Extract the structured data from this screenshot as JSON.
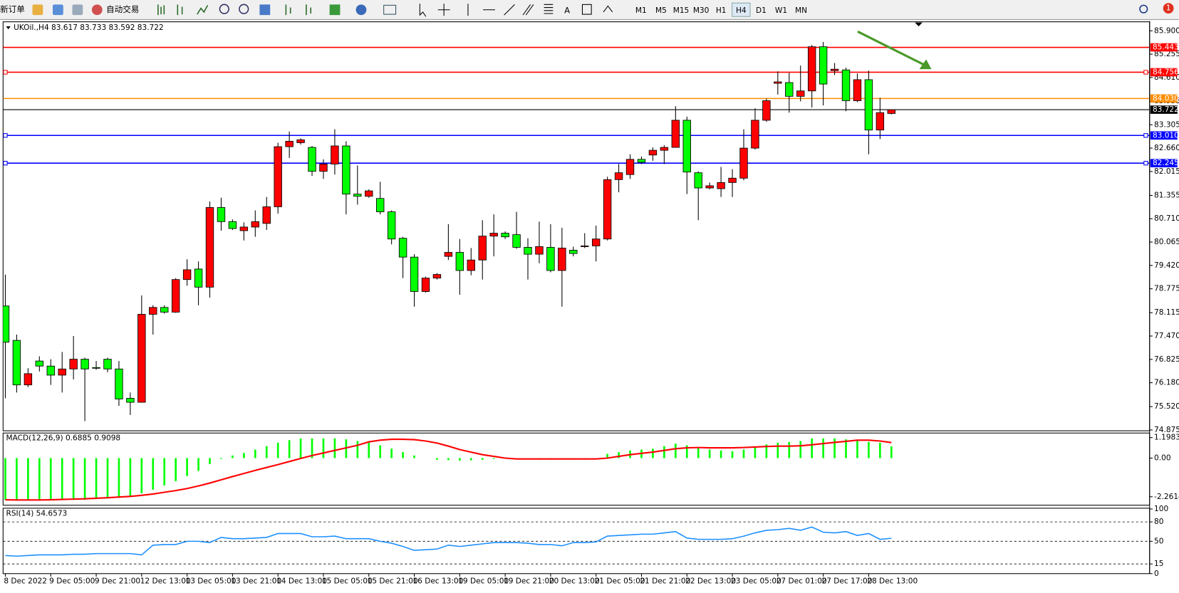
{
  "toolbar": {
    "new_order": "新订单",
    "auto_trading": "自动交易",
    "text_tool": "A",
    "notifications": "1",
    "timeframes": [
      "M1",
      "M5",
      "M15",
      "M30",
      "H1",
      "H4",
      "D1",
      "W1",
      "MN"
    ],
    "active_timeframe": "H4"
  },
  "chart_data": [
    {
      "type": "candlestick",
      "title": "UKOil.,H4  83.617 83.733 83.592 83.722",
      "up_color": "#ff0000",
      "down_color": "#00ff00",
      "categories": [
        "8 Dec 2022",
        null,
        null,
        null,
        "9 Dec 05:00",
        null,
        null,
        null,
        "9 Dec 21:00",
        null,
        null,
        null,
        "12 Dec 13:00",
        null,
        null,
        null,
        "13 Dec 05:00",
        null,
        null,
        null,
        "13 Dec 21:00",
        null,
        null,
        null,
        "14 Dec 13:00",
        null,
        null,
        null,
        "15 Dec 05:00",
        null,
        null,
        null,
        "15 Dec 21:00",
        null,
        null,
        null,
        "16 Dec 13:00",
        null,
        null,
        null,
        "19 Dec 05:00",
        null,
        null,
        null,
        "19 Dec 21:00",
        null,
        null,
        null,
        "20 Dec 13:00",
        null,
        null,
        null,
        "21 Dec 05:00",
        null,
        null,
        null,
        "21 Dec 21:00",
        null,
        null,
        null,
        "22 Dec 13:00",
        null,
        null,
        null,
        "23 Dec 05:00",
        null,
        null,
        null,
        "27 Dec 01:00",
        null,
        null,
        null,
        "27 Dec 17:00",
        null,
        null,
        null,
        "28 Dec 13:00",
        null,
        null
      ],
      "open": [
        78.3,
        77.35,
        76.12,
        76.78,
        76.64,
        76.39,
        76.56,
        76.83,
        76.6,
        76.83,
        76.56,
        75.75,
        75.64,
        78.07,
        78.26,
        78.13,
        79.03,
        79.32,
        78.82,
        81.02,
        80.63,
        80.38,
        80.48,
        80.58,
        81.04,
        82.7,
        82.81,
        82.68,
        82.02,
        82.22,
        82.72,
        81.39,
        81.33,
        81.27,
        80.9,
        80.17,
        79.65,
        78.7,
        79.07,
        79.67,
        79.78,
        79.28,
        79.57,
        80.23,
        80.31,
        80.27,
        79.92,
        79.73,
        79.92,
        79.28,
        79.84,
        79.94,
        79.96,
        80.15,
        81.79,
        81.93,
        82.35,
        82.47,
        82.6,
        82.68,
        83.43,
        81.98,
        81.56,
        81.54,
        81.71,
        81.83,
        82.66,
        83.43,
        84.45,
        84.47,
        84.09,
        84.24,
        85.46,
        84.8,
        84.82,
        83.97,
        84.55,
        83.16,
        83.617
      ],
      "high": [
        79.17,
        77.51,
        76.58,
        76.91,
        76.83,
        77.03,
        77.47,
        76.87,
        76.78,
        76.87,
        76.78,
        75.91,
        78.59,
        78.32,
        78.32,
        79.07,
        79.59,
        79.53,
        81.19,
        81.29,
        80.69,
        80.61,
        80.94,
        81.31,
        82.81,
        83.12,
        82.93,
        82.72,
        82.35,
        83.18,
        82.85,
        82.18,
        81.52,
        81.73,
        80.94,
        80.21,
        79.73,
        79.11,
        79.21,
        80.56,
        80.15,
        79.9,
        80.67,
        80.83,
        80.36,
        80.9,
        80.17,
        80.63,
        80.56,
        80.46,
        79.94,
        80.31,
        80.52,
        81.87,
        82.22,
        82.49,
        82.43,
        82.68,
        82.74,
        83.82,
        83.53,
        82.02,
        81.71,
        82.14,
        82.08,
        83.18,
        83.76,
        84.03,
        84.78,
        84.74,
        84.94,
        85.51,
        85.59,
        85.01,
        84.88,
        84.72,
        84.8,
        84.05,
        83.733
      ],
      "low": [
        75.75,
        75.91,
        76.06,
        76.49,
        76.12,
        75.91,
        76.27,
        75.12,
        76.54,
        76.47,
        75.54,
        75.29,
        75.64,
        77.51,
        78.09,
        78.11,
        78.86,
        78.32,
        78.53,
        80.38,
        80.4,
        80.11,
        80.21,
        80.4,
        80.85,
        82.39,
        82.76,
        81.89,
        81.81,
        81.93,
        80.83,
        81.1,
        81.29,
        80.83,
        80.0,
        79.07,
        78.28,
        78.67,
        79.03,
        79.57,
        78.61,
        79.15,
        79.03,
        79.67,
        80.15,
        79.88,
        79.03,
        79.48,
        79.23,
        78.28,
        79.67,
        79.9,
        79.53,
        80.11,
        81.44,
        81.81,
        82.22,
        82.31,
        82.22,
        82.68,
        81.39,
        80.67,
        81.52,
        81.31,
        81.31,
        81.77,
        82.62,
        83.39,
        84.14,
        83.64,
        83.95,
        83.78,
        83.84,
        84.68,
        83.68,
        83.93,
        82.49,
        82.91,
        83.592
      ],
      "close": [
        77.3,
        76.12,
        76.43,
        76.64,
        76.39,
        76.56,
        76.83,
        76.56,
        76.58,
        76.56,
        75.73,
        75.64,
        78.07,
        78.26,
        78.13,
        79.03,
        79.3,
        78.82,
        81.02,
        80.63,
        80.44,
        80.48,
        80.63,
        81.04,
        82.7,
        82.85,
        82.89,
        82.02,
        82.22,
        82.72,
        81.39,
        81.33,
        81.48,
        80.9,
        80.15,
        79.65,
        78.7,
        79.07,
        79.17,
        79.78,
        79.28,
        79.57,
        80.23,
        80.31,
        80.21,
        79.92,
        79.73,
        79.94,
        79.28,
        79.9,
        79.75,
        79.96,
        80.15,
        81.79,
        81.98,
        82.35,
        82.27,
        82.6,
        82.68,
        83.43,
        82.0,
        81.56,
        81.62,
        81.71,
        81.83,
        82.66,
        83.43,
        83.97,
        84.49,
        84.09,
        84.24,
        85.46,
        84.43,
        84.84,
        83.97,
        84.55,
        83.16,
        83.64,
        83.722
      ],
      "ylim": [
        74.853,
        86.149
      ],
      "yticks": [
        {
          "value": 85.9,
          "label": "85.900"
        },
        85.255,
        {
          "value": 84.61,
          "label": "84.610"
        },
        83.955,
        83.305,
        {
          "value": 82.66,
          "label": "82.660"
        },
        82.015,
        81.355,
        {
          "value": 80.71,
          "label": "80.710"
        },
        80.065,
        {
          "value": 79.42,
          "label": "79.420"
        },
        78.775,
        78.115,
        {
          "value": 77.47,
          "label": "77.470"
        },
        76.825,
        {
          "value": 76.18,
          "label": "76.180"
        },
        {
          "value": 75.52,
          "label": "75.520"
        },
        74.875
      ],
      "levels": [
        {
          "value": 85.443,
          "color": "#ff0000"
        },
        {
          "value": 84.756,
          "color": "#ff0000",
          "selected": true
        },
        {
          "value": 84.03,
          "label": "84.030",
          "color": "#ff8c00"
        },
        {
          "value": 83.722,
          "color": "#000000"
        },
        {
          "value": 83.01,
          "label": "83.010",
          "color": "#0000ff",
          "selected": true
        },
        {
          "value": 82.245,
          "color": "#0000ff",
          "selected": true
        }
      ]
    },
    {
      "type": "macd",
      "title": "MACD(12,26,9) 0.6885 0.9098",
      "color": "#00ff00",
      "values": [
        -2.44,
        -2.44,
        -2.44,
        -2.44,
        -2.44,
        -2.44,
        -2.44,
        -2.44,
        -2.4,
        -2.36,
        -2.33,
        -2.25,
        -2.05,
        -1.85,
        -1.6,
        -1.35,
        -1.05,
        -0.75,
        -0.35,
        -0.05,
        0.15,
        0.3,
        0.5,
        0.7,
        0.9,
        1.05,
        1.15,
        1.15,
        1.15,
        1.15,
        1.1,
        1.0,
        0.9,
        0.75,
        0.55,
        0.35,
        0.15,
        0.0,
        -0.1,
        -0.12,
        -0.15,
        -0.13,
        -0.1,
        -0.05,
        -0.03,
        -0.02,
        -0.05,
        -0.05,
        -0.06,
        -0.05,
        -0.03,
        -0.02,
        0.0,
        0.25,
        0.35,
        0.45,
        0.5,
        0.55,
        0.7,
        0.85,
        0.75,
        0.6,
        0.5,
        0.45,
        0.4,
        0.5,
        0.65,
        0.8,
        0.9,
        0.95,
        1.0,
        1.15,
        1.15,
        1.15,
        1.1,
        1.05,
        0.95,
        0.9,
        0.6885
      ],
      "signal": {
        "color": "#ff0000",
        "values": [
          -2.44,
          -2.45,
          -2.45,
          -2.45,
          -2.44,
          -2.42,
          -2.4,
          -2.38,
          -2.35,
          -2.32,
          -2.28,
          -2.24,
          -2.18,
          -2.1,
          -2.0,
          -1.9,
          -1.78,
          -1.63,
          -1.46,
          -1.27,
          -1.08,
          -0.9,
          -0.72,
          -0.55,
          -0.38,
          -0.2,
          -0.02,
          0.15,
          0.3,
          0.45,
          0.6,
          0.75,
          0.95,
          1.05,
          1.1,
          1.1,
          1.08,
          1.0,
          0.88,
          0.7,
          0.5,
          0.35,
          0.2,
          0.1,
          0.0,
          -0.05,
          -0.05,
          -0.05,
          -0.05,
          -0.05,
          -0.05,
          -0.05,
          -0.05,
          0.0,
          0.1,
          0.2,
          0.28,
          0.35,
          0.45,
          0.55,
          0.6,
          0.62,
          0.6,
          0.6,
          0.6,
          0.62,
          0.65,
          0.68,
          0.7,
          0.7,
          0.72,
          0.78,
          0.85,
          0.92,
          0.98,
          1.05,
          1.05,
          1.0,
          0.9098
        ]
      },
      "ylim": [
        -2.756,
        1.467
      ],
      "yticks": [
        1.1983,
        {
          "value": 0,
          "label": "0.00"
        },
        -2.2614
      ]
    },
    {
      "type": "line",
      "title": "RSI(14) 54.6573",
      "color": "#1e90ff",
      "values": [
        28,
        27,
        28,
        29,
        29,
        29,
        30,
        30,
        31,
        31,
        31,
        31,
        29,
        44,
        45,
        45,
        50,
        50,
        48,
        56,
        54,
        54,
        55,
        56,
        62,
        62,
        62,
        57,
        57,
        58,
        54,
        54,
        54,
        50,
        47,
        42,
        36,
        37,
        38,
        44,
        42,
        44,
        46,
        48,
        48,
        48,
        47,
        45,
        45,
        43,
        48,
        48,
        49,
        58,
        59,
        60,
        61,
        61,
        63,
        65,
        55,
        53,
        53,
        53,
        54,
        58,
        63,
        67,
        68,
        70,
        67,
        72,
        64,
        63,
        65,
        59,
        62,
        53,
        54.6573
      ],
      "ylim": [
        0,
        100
      ],
      "yticks": [
        100,
        80,
        50,
        15,
        0
      ],
      "levels": [
        80,
        50,
        15
      ]
    }
  ]
}
